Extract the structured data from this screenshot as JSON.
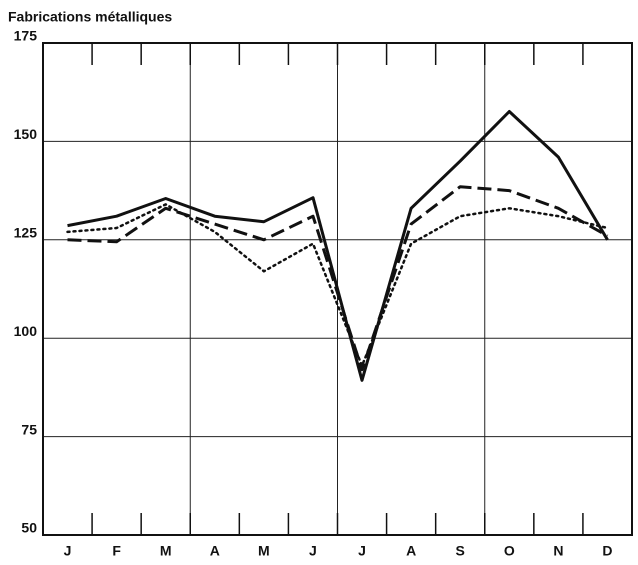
{
  "chart_data": {
    "type": "line",
    "title": "Fabrications métalliques",
    "categories": [
      "J",
      "F",
      "M",
      "A",
      "M",
      "J",
      "J",
      "A",
      "S",
      "O",
      "N",
      "D"
    ],
    "series": [
      {
        "color": "#111111",
        "dash": "solid",
        "values": [
          128.6,
          131,
          135.5,
          131,
          129.6,
          135.7,
          89.3,
          133,
          145,
          157.6,
          146,
          125
        ]
      },
      {
        "color": "#111111",
        "dash": "dashed",
        "values": [
          125,
          124.5,
          133,
          129,
          125,
          131,
          92,
          129,
          138.5,
          137.5,
          133,
          126
        ]
      },
      {
        "color": "#111111",
        "dash": "dotted",
        "values": [
          127,
          128,
          134,
          127,
          117,
          124,
          93,
          124,
          131,
          133,
          131,
          128
        ]
      }
    ],
    "ylim": [
      50,
      175
    ],
    "yticks": [
      50,
      75,
      100,
      125,
      150,
      175
    ],
    "grid": true
  }
}
